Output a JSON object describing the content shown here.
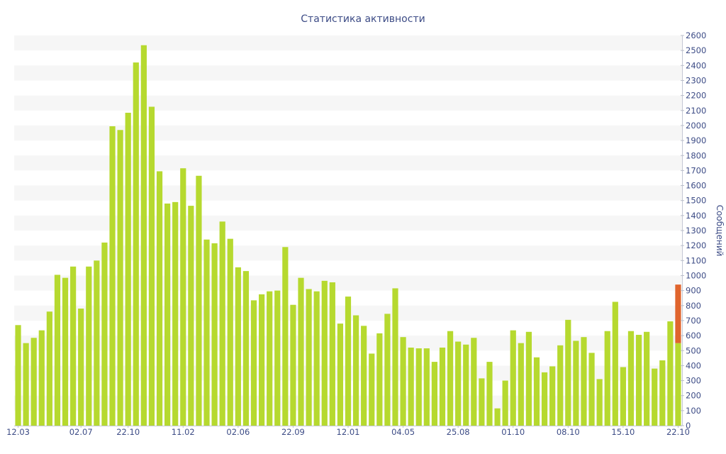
{
  "chart_data": {
    "type": "bar",
    "title": "Статистика активности",
    "xlabel": "",
    "ylabel": "Сообщений",
    "y_axis_side": "right",
    "ylim": [
      0,
      2600
    ],
    "yticks": [
      0,
      100,
      200,
      300,
      400,
      500,
      600,
      700,
      800,
      900,
      1000,
      1100,
      1200,
      1300,
      1400,
      1500,
      1600,
      1700,
      1800,
      1900,
      2000,
      2100,
      2200,
      2300,
      2400,
      2500,
      2600
    ],
    "grid": "alternating-horizontal-bands",
    "legend": "none",
    "stacked": true,
    "x_ticks": [
      {
        "label": "12.03",
        "bar": 0
      },
      {
        "label": "02.07",
        "bar": 8
      },
      {
        "label": "22.10",
        "bar": 14
      },
      {
        "label": "11.02",
        "bar": 21
      },
      {
        "label": "02.06",
        "bar": 28
      },
      {
        "label": "22.09",
        "bar": 35
      },
      {
        "label": "12.01",
        "bar": 42
      },
      {
        "label": "04.05",
        "bar": 49
      },
      {
        "label": "25.08",
        "bar": 56
      },
      {
        "label": "01.10",
        "bar": 63
      },
      {
        "label": "08.10",
        "bar": 70
      },
      {
        "label": "15.10",
        "bar": 77
      },
      {
        "label": "22.10",
        "bar": 84
      }
    ],
    "series": [
      {
        "color": "#b6d92f",
        "values": [
          670,
          550,
          585,
          635,
          760,
          1005,
          985,
          1060,
          780,
          1060,
          1100,
          1220,
          1995,
          1970,
          2085,
          2420,
          2535,
          2125,
          1695,
          1480,
          1490,
          1715,
          1465,
          1665,
          1240,
          1215,
          1360,
          1245,
          1055,
          1030,
          835,
          875,
          895,
          900,
          1190,
          805,
          985,
          910,
          895,
          965,
          955,
          680,
          860,
          735,
          665,
          480,
          615,
          745,
          915,
          590,
          520,
          515,
          515,
          425,
          520,
          630,
          560,
          540,
          585,
          315,
          425,
          115,
          300,
          635,
          550,
          625,
          455,
          355,
          395,
          535,
          705,
          565,
          590,
          485,
          310,
          630,
          825,
          390,
          630,
          605,
          625,
          380,
          435,
          695,
          550
        ]
      },
      {
        "color": "#e0652d",
        "values": [
          0,
          0,
          0,
          0,
          0,
          0,
          0,
          0,
          0,
          0,
          0,
          0,
          0,
          0,
          0,
          0,
          0,
          0,
          0,
          0,
          0,
          0,
          0,
          0,
          0,
          0,
          0,
          0,
          0,
          0,
          0,
          0,
          0,
          0,
          0,
          0,
          0,
          0,
          0,
          0,
          0,
          0,
          0,
          0,
          0,
          0,
          0,
          0,
          0,
          0,
          0,
          0,
          0,
          0,
          0,
          0,
          0,
          0,
          0,
          0,
          0,
          0,
          0,
          0,
          0,
          0,
          0,
          0,
          0,
          0,
          0,
          0,
          0,
          0,
          0,
          0,
          0,
          0,
          0,
          0,
          0,
          0,
          0,
          0,
          390
        ]
      }
    ]
  },
  "colors": {
    "band": "#f6f6f6",
    "text": "#3d4c86"
  }
}
